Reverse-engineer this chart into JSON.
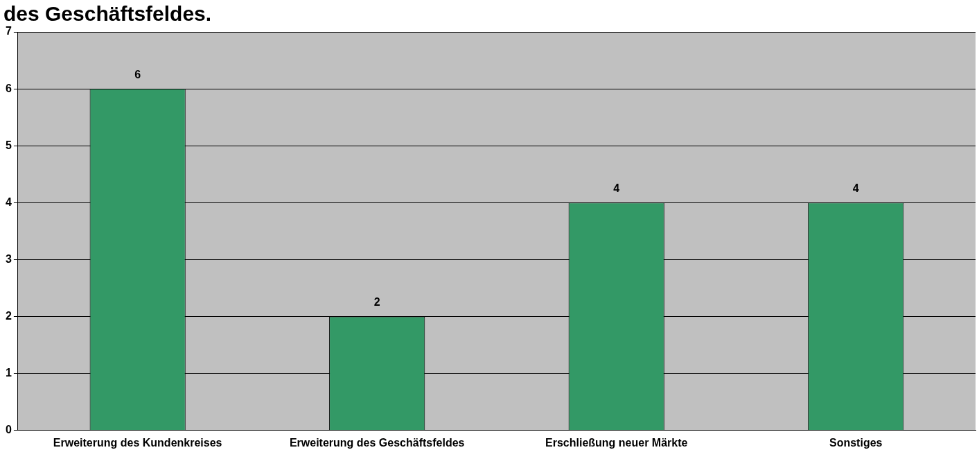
{
  "chart_data": {
    "type": "bar",
    "title": "des Geschäftsfeldes.",
    "categories": [
      "Erweiterung des Kundenkreises",
      "Erweiterung des Geschäftsfeldes",
      "Erschließung neuer Märkte",
      "Sonstiges"
    ],
    "values": [
      6,
      2,
      4,
      4
    ],
    "color": "#339966",
    "ylim": [
      0,
      7
    ],
    "yticks": [
      0,
      1,
      2,
      3,
      4,
      5,
      6,
      7
    ],
    "grid": "y",
    "data_labels": true
  }
}
